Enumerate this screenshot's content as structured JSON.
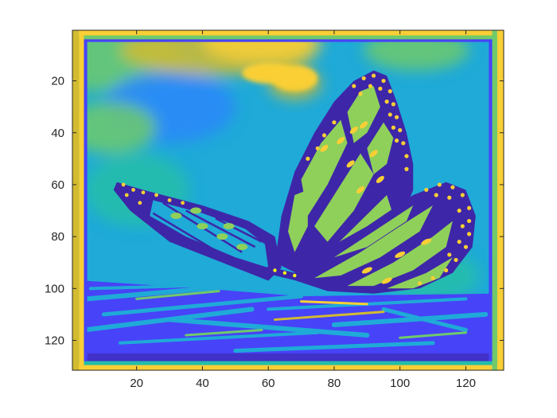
{
  "chart_data": {
    "type": "heatmap",
    "title": "",
    "xlabel": "",
    "ylabel": "",
    "xlim": [
      0.5,
      131.5
    ],
    "ylim": [
      131.5,
      0.5
    ],
    "y_axis_direction": "top-to-bottom",
    "xticks": [
      20,
      40,
      60,
      80,
      100,
      120
    ],
    "yticks": [
      20,
      40,
      60,
      80,
      100,
      120
    ],
    "grid": false,
    "legend": "none",
    "colormap": "parula",
    "colormap_colors": [
      "#3E26A8",
      "#4743F8",
      "#2C87F9",
      "#1FAAD8",
      "#23BEA9",
      "#6FCA6B",
      "#D2BB30",
      "#F9CF35",
      "#F9FB15"
    ],
    "image_size": [
      131,
      131
    ],
    "image_content": "butterfly",
    "background_color": "#1FAAD8",
    "frame_color": "#F9CF35",
    "wing_fill_color": "#8FD05A",
    "wing_vein_color": "#3E26A8",
    "highlight_color": "#F9CF35"
  }
}
